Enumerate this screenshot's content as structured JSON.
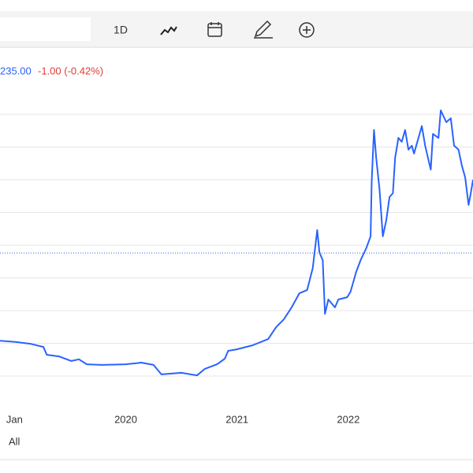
{
  "toolbar": {
    "interval": "1D"
  },
  "quote": {
    "price": "235.00",
    "change": "-1.00 (-0.42%)"
  },
  "range": "All",
  "chart_data": {
    "type": "line",
    "x": [
      2018.87,
      2019.01,
      2019.15,
      2019.26,
      2019.29,
      2019.4,
      2019.51,
      2019.58,
      2019.65,
      2019.79,
      2020.0,
      2020.14,
      2020.25,
      2020.32,
      2020.5,
      2020.64,
      2020.71,
      2020.82,
      2020.89,
      2020.92,
      2020.99,
      2021.14,
      2021.28,
      2021.35,
      2021.42,
      2021.49,
      2021.56,
      2021.63,
      2021.68,
      2021.72,
      2021.74,
      2021.77,
      2021.79,
      2021.82,
      2021.88,
      2021.91,
      2021.99,
      2022.02,
      2022.07,
      2022.11,
      2022.16,
      2022.2,
      2022.21,
      2022.23,
      2022.25,
      2022.28,
      2022.31,
      2022.34,
      2022.37,
      2022.4,
      2022.42,
      2022.45,
      2022.48,
      2022.51,
      2022.54,
      2022.57,
      2022.59,
      2022.62,
      2022.66,
      2022.69,
      2022.74,
      2022.76,
      2022.81,
      2022.83,
      2022.88,
      2022.92,
      2022.95,
      2022.99,
      2023.02,
      2023.05,
      2023.08,
      2023.1,
      2023.12
    ],
    "series": [
      {
        "color": "#2962ff",
        "values": [
          2.08,
          2.04,
          1.98,
          1.89,
          1.65,
          1.6,
          1.46,
          1.51,
          1.36,
          1.34,
          1.36,
          1.41,
          1.34,
          1.05,
          1.1,
          1.02,
          1.22,
          1.36,
          1.53,
          1.77,
          1.81,
          1.94,
          2.13,
          2.49,
          2.73,
          3.1,
          3.53,
          3.63,
          4.3,
          5.46,
          4.78,
          4.54,
          2.9,
          3.34,
          3.1,
          3.34,
          3.41,
          3.58,
          4.18,
          4.54,
          4.9,
          5.27,
          6.95,
          8.52,
          7.67,
          6.71,
          5.27,
          5.75,
          6.47,
          6.59,
          7.67,
          8.28,
          8.16,
          8.52,
          7.92,
          8.04,
          7.8,
          8.16,
          8.64,
          8.04,
          7.31,
          8.4,
          8.28,
          9.12,
          8.76,
          8.88,
          8.04,
          7.92,
          7.43,
          7.07,
          6.23,
          6.59,
          7.0
        ]
      }
    ],
    "xlim": [
      2018.87,
      2023.12
    ],
    "xticks": [
      {
        "value": 2019.0,
        "label": "Jan"
      },
      2020,
      2021,
      2022
    ],
    "ylim": [
      0,
      10
    ],
    "grid_lines": [
      1,
      2,
      3,
      4,
      5,
      6,
      7,
      8,
      9
    ],
    "reference_line": 4.76,
    "grid": true
  }
}
